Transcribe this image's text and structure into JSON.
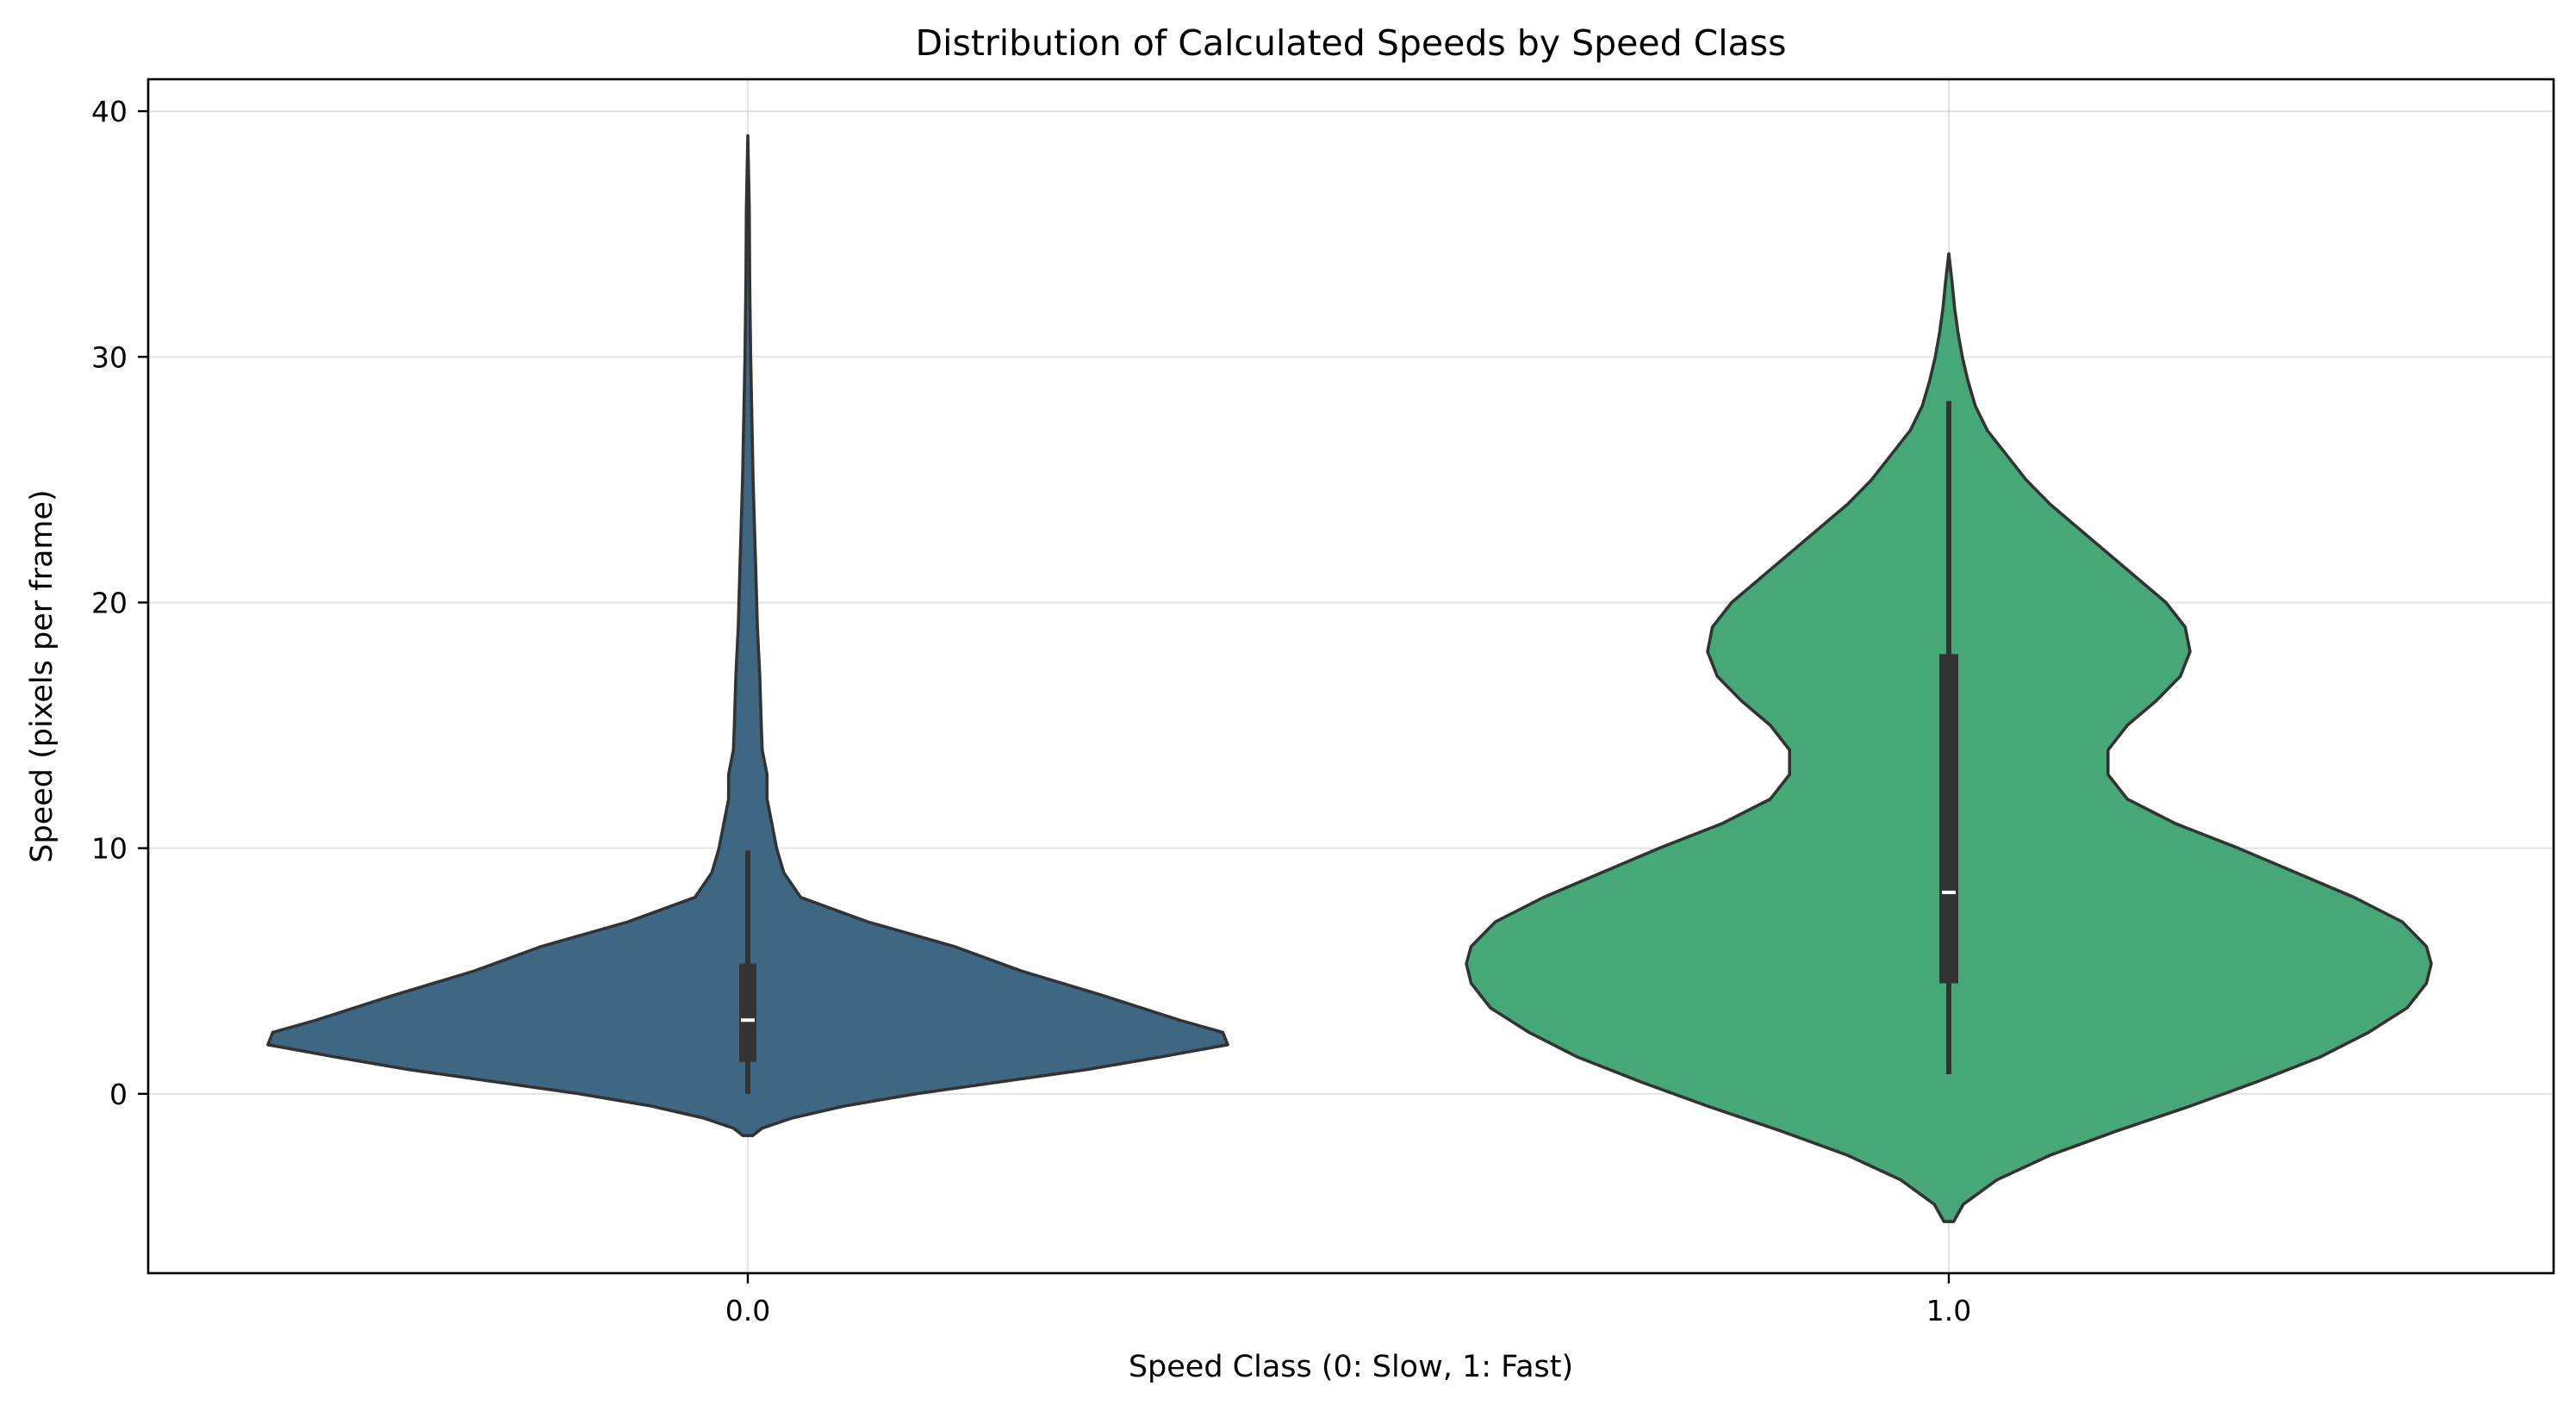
{
  "chart_data": {
    "type": "violin",
    "title": "Distribution of Calculated Speeds by Speed Class",
    "xlabel": "Speed Class (0: Slow, 1: Fast)",
    "ylabel": "Speed (pixels per frame)",
    "categories": [
      "0.0",
      "1.0"
    ],
    "ylim": [
      -7.3,
      41.3
    ],
    "yticks": [
      0,
      10,
      20,
      30,
      40
    ],
    "yticklabels": [
      "0",
      "10",
      "20",
      "30",
      "40"
    ],
    "grid": true,
    "colors": {
      "class_0": "#3e6784",
      "class_1": "#46a877",
      "outline": "#333333",
      "box": "#333333",
      "median": "#ffffff"
    },
    "violins": [
      {
        "category": "0.0",
        "min": 0.0,
        "q1": 1.3,
        "median": 3.0,
        "q3": 5.3,
        "whisker_low": 0.0,
        "whisker_high": 9.9,
        "max": 39.0,
        "density_profile": [
          [
            -1.7,
            0.01
          ],
          [
            -1.4,
            0.03
          ],
          [
            -1.0,
            0.09
          ],
          [
            -0.5,
            0.2
          ],
          [
            0.0,
            0.35
          ],
          [
            0.5,
            0.53
          ],
          [
            1.0,
            0.71
          ],
          [
            1.5,
            0.86
          ],
          [
            2.0,
            1.0
          ],
          [
            2.5,
            0.99
          ],
          [
            3.0,
            0.9
          ],
          [
            4.0,
            0.74
          ],
          [
            5.0,
            0.57
          ],
          [
            6.0,
            0.43
          ],
          [
            7.0,
            0.25
          ],
          [
            8.0,
            0.11
          ],
          [
            9.0,
            0.075
          ],
          [
            10.0,
            0.06
          ],
          [
            11.0,
            0.05
          ],
          [
            12.0,
            0.04
          ],
          [
            13.0,
            0.04
          ],
          [
            14.0,
            0.03
          ],
          [
            15.0,
            0.028
          ],
          [
            17.0,
            0.025
          ],
          [
            19.0,
            0.02
          ],
          [
            21.0,
            0.017
          ],
          [
            23.0,
            0.014
          ],
          [
            25.0,
            0.011
          ],
          [
            27.0,
            0.009
          ],
          [
            30.0,
            0.006
          ],
          [
            33.0,
            0.004
          ],
          [
            36.0,
            0.003
          ],
          [
            39.0,
            0.0
          ]
        ]
      },
      {
        "category": "1.0",
        "min": 0.8,
        "q1": 4.5,
        "median": 8.2,
        "q3": 17.9,
        "whisker_low": 0.8,
        "whisker_high": 28.2,
        "max": 34.2,
        "density_profile": [
          [
            -5.2,
            0.01
          ],
          [
            -4.5,
            0.03
          ],
          [
            -3.5,
            0.1
          ],
          [
            -2.5,
            0.21
          ],
          [
            -1.5,
            0.35
          ],
          [
            -0.5,
            0.5
          ],
          [
            0.5,
            0.64
          ],
          [
            1.5,
            0.77
          ],
          [
            2.5,
            0.87
          ],
          [
            3.5,
            0.95
          ],
          [
            4.5,
            0.99
          ],
          [
            5.3,
            1.0
          ],
          [
            6.0,
            0.99
          ],
          [
            7.0,
            0.94
          ],
          [
            8.0,
            0.84
          ],
          [
            9.0,
            0.72
          ],
          [
            10.0,
            0.6
          ],
          [
            11.0,
            0.47
          ],
          [
            12.0,
            0.37
          ],
          [
            13.0,
            0.33
          ],
          [
            14.0,
            0.33
          ],
          [
            15.0,
            0.37
          ],
          [
            16.0,
            0.43
          ],
          [
            17.0,
            0.48
          ],
          [
            18.0,
            0.5
          ],
          [
            19.0,
            0.49
          ],
          [
            20.0,
            0.45
          ],
          [
            21.0,
            0.39
          ],
          [
            22.0,
            0.33
          ],
          [
            23.0,
            0.27
          ],
          [
            24.0,
            0.21
          ],
          [
            25.0,
            0.16
          ],
          [
            26.0,
            0.12
          ],
          [
            27.0,
            0.08
          ],
          [
            28.0,
            0.055
          ],
          [
            29.0,
            0.04
          ],
          [
            30.0,
            0.028
          ],
          [
            31.0,
            0.019
          ],
          [
            32.0,
            0.012
          ],
          [
            33.0,
            0.007
          ],
          [
            34.2,
            0.0
          ]
        ]
      }
    ]
  }
}
